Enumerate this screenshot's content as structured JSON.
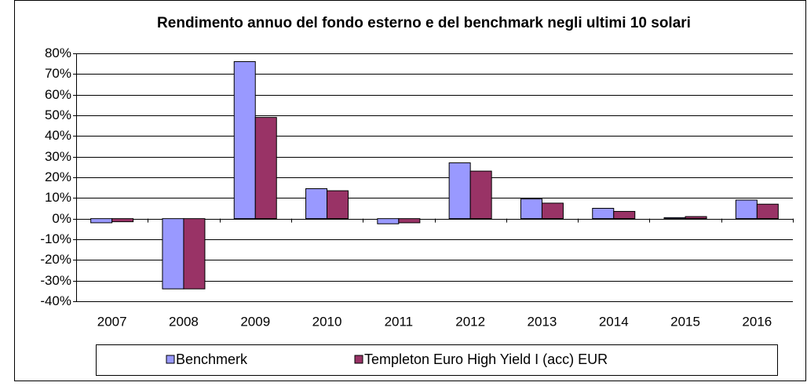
{
  "chart_data": {
    "type": "bar",
    "title": "Rendimento annuo del fondo esterno e del benchmark negli ultimi 10 solari",
    "categories": [
      "2007",
      "2008",
      "2009",
      "2010",
      "2011",
      "2012",
      "2013",
      "2014",
      "2015",
      "2016"
    ],
    "series": [
      {
        "name": "Benchmerk",
        "color": "#9999ff",
        "values": [
          -2,
          -34,
          76,
          14.5,
          -2.5,
          27,
          9.5,
          5,
          0.5,
          9
        ]
      },
      {
        "name": "Templeton Euro High Yield I (acc) EUR",
        "color": "#993366",
        "values": [
          -1.5,
          -34,
          49,
          13.5,
          -2,
          23,
          7.5,
          3.5,
          1,
          7
        ]
      }
    ],
    "ylim": [
      -40,
      80
    ],
    "yticks": [
      {
        "value": -40,
        "label": "-40%"
      },
      {
        "value": -30,
        "label": "-30%"
      },
      {
        "value": -20,
        "label": "-20%"
      },
      {
        "value": -10,
        "label": "-10%"
      },
      {
        "value": 0,
        "label": "0%"
      },
      {
        "value": 10,
        "label": "10%"
      },
      {
        "value": 20,
        "label": "20%"
      },
      {
        "value": 30,
        "label": "30%"
      },
      {
        "value": 40,
        "label": "40%"
      },
      {
        "value": 50,
        "label": "50%"
      },
      {
        "value": 60,
        "label": "60%"
      },
      {
        "value": 70,
        "label": "70%"
      },
      {
        "value": 80,
        "label": "80%"
      }
    ],
    "grid": true,
    "legend": "bottom"
  }
}
